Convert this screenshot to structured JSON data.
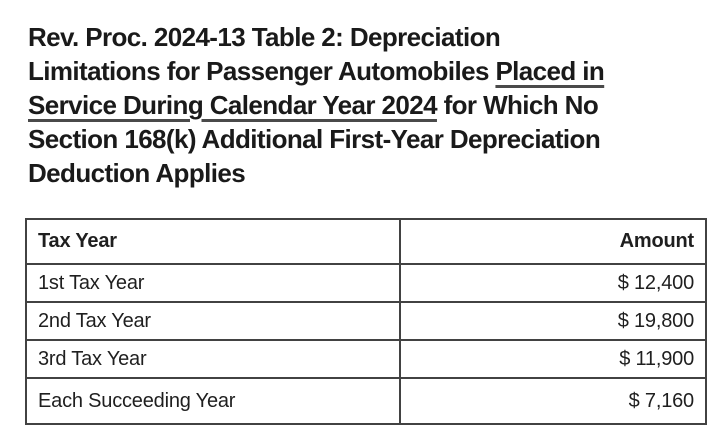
{
  "page": {
    "background": "#ffffff",
    "text_color": "#1f1f1f",
    "border_color": "#424242"
  },
  "heading": {
    "full_text": "Rev. Proc. 2024-13 Table 2: Depreciation Limitations for Passenger Automobiles Placed in Service During Calendar Year 2024 for Which No Section 168(k) Additional First-Year Depreciation Deduction Applies",
    "underlined_phrase": "Placed in Service During Calendar Year 2024",
    "lines": [
      {
        "pre": "Rev. Proc. 2024-13 Table 2: Depreciation",
        "underlined": "",
        "post": ""
      },
      {
        "pre": "Limitations for Passenger Automobiles ",
        "underlined": "Placed in",
        "post": ""
      },
      {
        "pre": "",
        "underlined": "Service During Calendar Year 2024",
        "post": " for Which No"
      },
      {
        "pre": "Section 168(k) Additional First-Year Depreciation",
        "underlined": "",
        "post": ""
      },
      {
        "pre": "Deduction Applies",
        "underlined": "",
        "post": ""
      }
    ]
  },
  "table": {
    "headers": [
      {
        "label": "Tax Year",
        "align": "left"
      },
      {
        "label": "Amount",
        "align": "right"
      }
    ],
    "rows": [
      {
        "tax_year": "1st Tax Year",
        "amount": "$ 12,400"
      },
      {
        "tax_year": "2nd Tax Year",
        "amount": "$ 19,800"
      },
      {
        "tax_year": "3rd Tax Year",
        "amount": "$ 11,900"
      },
      {
        "tax_year": "Each Succeeding Year",
        "amount": "$ 7,160"
      }
    ]
  }
}
